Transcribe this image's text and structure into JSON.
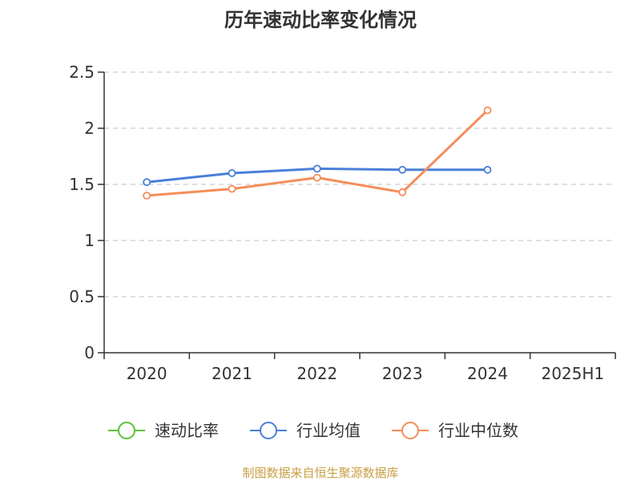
{
  "chart_data": {
    "type": "line",
    "title": "历年速动比率变化情况",
    "categories": [
      "2020",
      "2021",
      "2022",
      "2023",
      "2024",
      "2025H1"
    ],
    "ylim": [
      0,
      2.5
    ],
    "yticks": [
      "0",
      "0.5",
      "1",
      "1.5",
      "2",
      "2.5"
    ],
    "grid": true,
    "legend_position": "bottom",
    "series": [
      {
        "name": "速动比率",
        "color": "#5ac23a",
        "values": [
          null,
          null,
          null,
          null,
          null,
          null
        ]
      },
      {
        "name": "行业均值",
        "color": "#4a7fd9",
        "values": [
          1.52,
          1.6,
          1.64,
          1.63,
          1.63,
          null
        ]
      },
      {
        "name": "行业中位数",
        "color": "#f58d5a",
        "values": [
          1.4,
          1.46,
          1.56,
          1.43,
          2.16,
          null
        ]
      }
    ]
  },
  "footer": {
    "source": "制图数据来自恒生聚源数据库"
  }
}
